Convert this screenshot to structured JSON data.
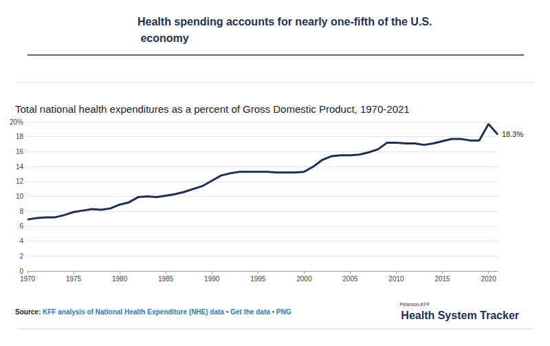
{
  "chart_data": {
    "type": "line",
    "title": "Health spending accounts for nearly one-fifth of the U.S. economy",
    "subtitle": "Total national health expenditures as a percent of Gross Domestic Product, 1970-2021",
    "source": "Source: KFF analysis of National Health Expenditure (NHE) data • Get the data • PNG",
    "brand": "Peterson-KFF",
    "brand_title": "Health System Tracker",
    "x": [
      1970,
      1971,
      1972,
      1973,
      1974,
      1975,
      1976,
      1977,
      1978,
      1979,
      1980,
      1981,
      1982,
      1983,
      1984,
      1985,
      1986,
      1987,
      1988,
      1989,
      1990,
      1991,
      1992,
      1993,
      1994,
      1995,
      1996,
      1997,
      1998,
      1999,
      2000,
      2001,
      2002,
      2003,
      2004,
      2005,
      2006,
      2007,
      2008,
      2009,
      2010,
      2011,
      2012,
      2013,
      2014,
      2015,
      2016,
      2017,
      2018,
      2019,
      2020,
      2021
    ],
    "values": [
      6.9,
      7.1,
      7.2,
      7.2,
      7.5,
      7.9,
      8.1,
      8.3,
      8.2,
      8.4,
      8.9,
      9.2,
      9.9,
      10.0,
      9.9,
      10.1,
      10.3,
      10.6,
      11.0,
      11.4,
      12.1,
      12.8,
      13.1,
      13.3,
      13.3,
      13.3,
      13.3,
      13.2,
      13.2,
      13.2,
      13.3,
      14.0,
      14.9,
      15.4,
      15.5,
      15.5,
      15.6,
      15.9,
      16.3,
      17.2,
      17.2,
      17.1,
      17.1,
      16.9,
      17.1,
      17.4,
      17.7,
      17.7,
      17.5,
      17.5,
      19.7,
      18.3
    ],
    "value_labels": [
      null,
      null,
      null,
      null,
      null,
      null,
      null,
      null,
      null,
      null,
      null,
      null,
      null,
      null,
      null,
      null,
      null,
      null,
      null,
      null,
      null,
      null,
      null,
      null,
      null,
      null,
      null,
      null,
      null,
      null,
      null,
      null,
      null,
      null,
      null,
      null,
      null,
      null,
      null,
      null,
      null,
      null,
      null,
      null,
      null,
      null,
      null,
      null,
      null,
      null,
      null,
      "18.3%"
    ],
    "color": "#1f2f4f",
    "xlim": [
      1970,
      2021
    ],
    "xticks": [
      1970,
      1975,
      1980,
      1985,
      1990,
      1995,
      2000,
      2005,
      2010,
      2015,
      2020
    ],
    "ylim": [
      0,
      20
    ],
    "yticks": [
      0,
      2,
      4,
      6,
      8,
      10,
      12,
      14,
      16,
      18,
      {
        "value": 20,
        "label": "20%"
      }
    ],
    "grid": true
  }
}
